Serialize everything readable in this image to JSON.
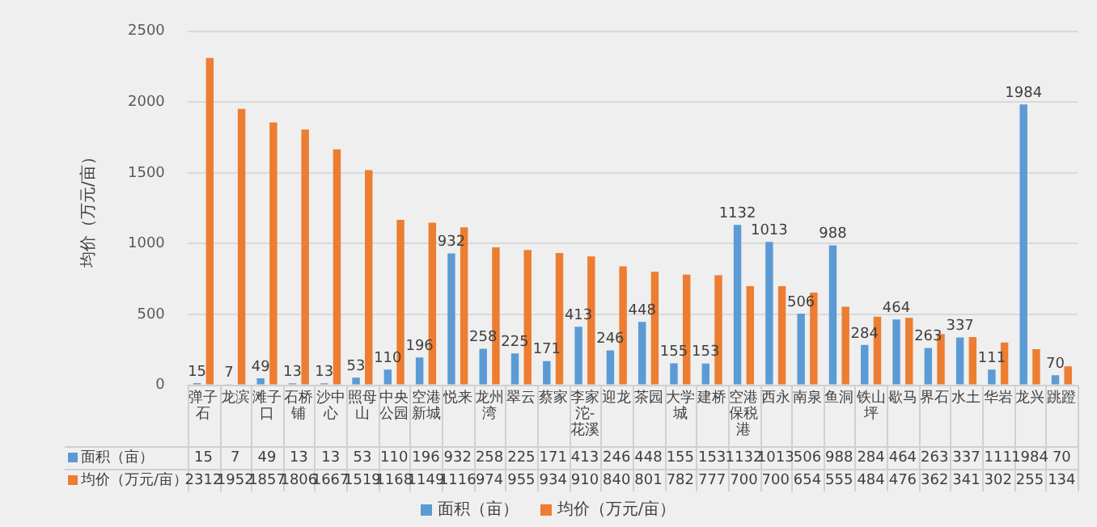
{
  "chart_data": {
    "type": "bar",
    "ylabel": "均价（万元/亩）",
    "categories": [
      "弹子石",
      "龙滨",
      "滩子口",
      "石桥铺",
      "沙中心",
      "照母山",
      "中央公园",
      "空港新城",
      "悦来",
      "龙州湾",
      "翠云",
      "蔡家",
      "李家沱-花溪",
      "迎龙",
      "茶园",
      "大学城",
      "建桥",
      "空港保税港",
      "西永",
      "南泉",
      "鱼洞",
      "铁山坪",
      "歇马",
      "界石",
      "水土",
      "华岩",
      "龙兴",
      "跳蹬"
    ],
    "series": [
      {
        "name": "面积（亩）",
        "color": "#5b9bd5",
        "values": [
          15,
          7,
          49,
          13,
          13,
          53,
          110,
          196,
          932,
          258,
          225,
          171,
          413,
          246,
          448,
          155,
          153,
          1132,
          1013,
          506,
          988,
          284,
          464,
          263,
          337,
          111,
          1984,
          70
        ],
        "value_labels": [
          "15",
          "7",
          "49",
          "13",
          "13",
          "53",
          "110",
          "196",
          "932",
          "258",
          "225",
          "171",
          "413",
          "246",
          "448",
          "155",
          "153",
          "1132",
          "1013",
          "506",
          "988",
          "284",
          "464",
          "263",
          "337",
          "111",
          "1984",
          "70"
        ]
      },
      {
        "name": "均价（万元/亩）",
        "color": "#ed7d31",
        "values": [
          2312,
          1952,
          1857,
          1806,
          1667,
          1519,
          1168,
          1149,
          1116,
          974,
          955,
          934,
          910,
          840,
          801,
          782,
          777,
          700,
          700,
          654,
          555,
          484,
          476,
          362,
          341,
          302,
          255,
          134
        ]
      }
    ],
    "ylim": [
      0,
      2500
    ],
    "yticks": [
      0,
      500,
      1000,
      1500,
      2000,
      2500
    ],
    "grid": "y",
    "legend": "bottom",
    "data_labels": true
  }
}
